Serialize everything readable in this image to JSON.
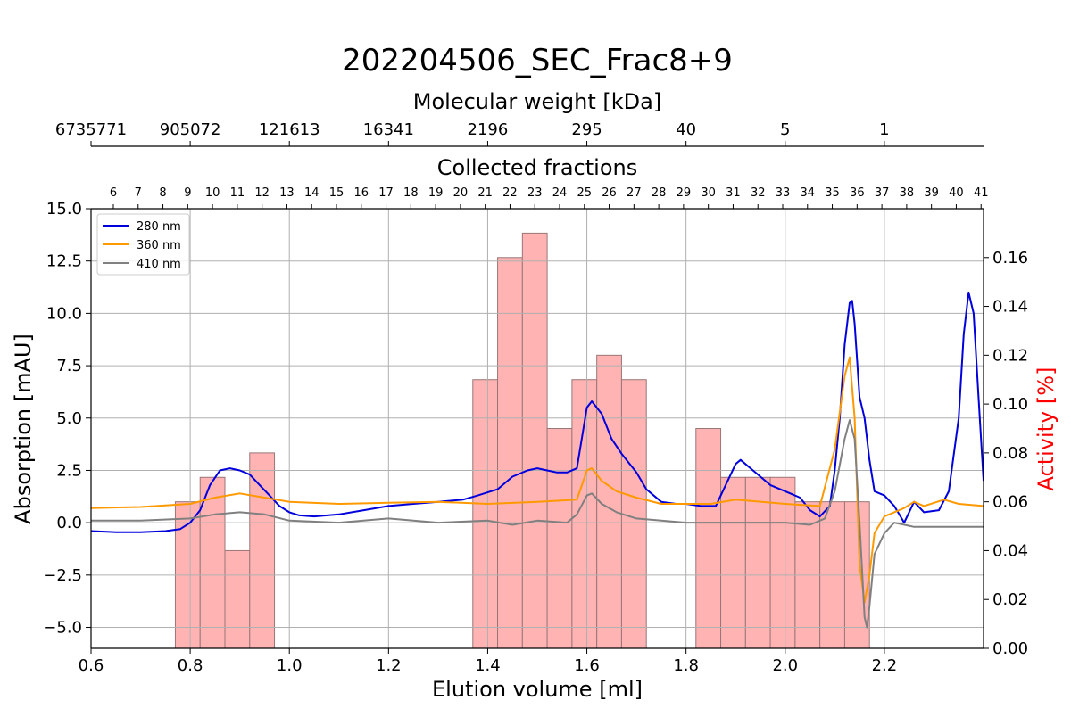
{
  "chart_data": {
    "type": "line",
    "title": "202204506_SEC_Frac8+9",
    "xlabel": "Elution volume [ml]",
    "ylabel": "Absorption [mAU]",
    "y2label": "Activity [%]",
    "top_axis_mw_label": "Molecular weight [kDa]",
    "top_axis_fraction_label": "Collected fractions",
    "xlim": [
      0.6,
      2.4
    ],
    "ylim": [
      -6.0,
      15.0
    ],
    "y2lim": [
      0.0,
      0.18
    ],
    "grid": true,
    "legend_position": "top-left",
    "x_ticks": [
      0.6,
      0.8,
      1.0,
      1.2,
      1.4,
      1.6,
      1.8,
      2.0,
      2.2
    ],
    "x_tick_labels": [
      "0.6",
      "0.8",
      "1.0",
      "1.2",
      "1.4",
      "1.6",
      "1.8",
      "2.0",
      "2.2"
    ],
    "y_ticks": [
      -5.0,
      -2.5,
      0.0,
      2.5,
      5.0,
      7.5,
      10.0,
      12.5,
      15.0
    ],
    "y_tick_labels": [
      "−5.0",
      "−2.5",
      "0.0",
      "2.5",
      "5.0",
      "7.5",
      "10.0",
      "12.5",
      "15.0"
    ],
    "y2_ticks": [
      0.0,
      0.02,
      0.04,
      0.06,
      0.08,
      0.1,
      0.12,
      0.14,
      0.16
    ],
    "y2_tick_labels": [
      "0.00",
      "0.02",
      "0.04",
      "0.06",
      "0.08",
      "0.10",
      "0.12",
      "0.14",
      "0.16"
    ],
    "mw_ticks": [
      {
        "x": 0.6,
        "label": "6735771"
      },
      {
        "x": 0.8,
        "label": "905072"
      },
      {
        "x": 1.0,
        "label": "121613"
      },
      {
        "x": 1.2,
        "label": "16341"
      },
      {
        "x": 1.4,
        "label": "2196"
      },
      {
        "x": 1.6,
        "label": "295"
      },
      {
        "x": 1.8,
        "label": "40"
      },
      {
        "x": 2.0,
        "label": "5"
      },
      {
        "x": 2.2,
        "label": "1"
      }
    ],
    "fraction_start": 0.62,
    "fraction_width": 0.05,
    "fraction_first": 6,
    "fraction_last": 41,
    "bars": [
      {
        "fraction": "9",
        "value": 0.06
      },
      {
        "fraction": "10",
        "value": 0.07
      },
      {
        "fraction": "11",
        "value": 0.04
      },
      {
        "fraction": "12",
        "value": 0.08
      },
      {
        "fraction": "21",
        "value": 0.11
      },
      {
        "fraction": "22",
        "value": 0.16
      },
      {
        "fraction": "23",
        "value": 0.17
      },
      {
        "fraction": "24",
        "value": 0.09
      },
      {
        "fraction": "25",
        "value": 0.11
      },
      {
        "fraction": "26",
        "value": 0.12
      },
      {
        "fraction": "27",
        "value": 0.11
      },
      {
        "fraction": "30",
        "value": 0.09
      },
      {
        "fraction": "31",
        "value": 0.07
      },
      {
        "fraction": "32",
        "value": 0.07
      },
      {
        "fraction": "33",
        "value": 0.07
      },
      {
        "fraction": "34",
        "value": 0.06
      },
      {
        "fraction": "35",
        "value": 0.06
      },
      {
        "fraction": "36",
        "value": 0.06
      }
    ],
    "bar_color": "#ffb3b3",
    "bar_edge_color": "#9a7777",
    "series": [
      {
        "name": "280 nm",
        "color": "#0000dd",
        "points": [
          [
            0.6,
            -0.4
          ],
          [
            0.65,
            -0.45
          ],
          [
            0.7,
            -0.45
          ],
          [
            0.75,
            -0.4
          ],
          [
            0.78,
            -0.3
          ],
          [
            0.8,
            0.0
          ],
          [
            0.82,
            0.6
          ],
          [
            0.84,
            1.8
          ],
          [
            0.86,
            2.5
          ],
          [
            0.88,
            2.6
          ],
          [
            0.9,
            2.5
          ],
          [
            0.92,
            2.3
          ],
          [
            0.94,
            1.8
          ],
          [
            0.96,
            1.3
          ],
          [
            0.98,
            0.8
          ],
          [
            1.0,
            0.5
          ],
          [
            1.02,
            0.35
          ],
          [
            1.05,
            0.3
          ],
          [
            1.1,
            0.4
          ],
          [
            1.15,
            0.6
          ],
          [
            1.2,
            0.8
          ],
          [
            1.25,
            0.9
          ],
          [
            1.3,
            1.0
          ],
          [
            1.35,
            1.1
          ],
          [
            1.38,
            1.3
          ],
          [
            1.42,
            1.6
          ],
          [
            1.45,
            2.2
          ],
          [
            1.48,
            2.5
          ],
          [
            1.5,
            2.6
          ],
          [
            1.52,
            2.5
          ],
          [
            1.54,
            2.4
          ],
          [
            1.56,
            2.4
          ],
          [
            1.58,
            2.6
          ],
          [
            1.6,
            5.5
          ],
          [
            1.61,
            5.8
          ],
          [
            1.63,
            5.2
          ],
          [
            1.65,
            4.0
          ],
          [
            1.67,
            3.3
          ],
          [
            1.7,
            2.4
          ],
          [
            1.72,
            1.6
          ],
          [
            1.75,
            1.0
          ],
          [
            1.78,
            0.9
          ],
          [
            1.8,
            0.9
          ],
          [
            1.83,
            0.8
          ],
          [
            1.86,
            0.8
          ],
          [
            1.88,
            1.8
          ],
          [
            1.9,
            2.8
          ],
          [
            1.91,
            3.0
          ],
          [
            1.93,
            2.6
          ],
          [
            1.95,
            2.2
          ],
          [
            1.97,
            1.8
          ],
          [
            2.0,
            1.5
          ],
          [
            2.03,
            1.2
          ],
          [
            2.05,
            0.6
          ],
          [
            2.07,
            0.3
          ],
          [
            2.09,
            0.8
          ],
          [
            2.1,
            2.5
          ],
          [
            2.11,
            5.0
          ],
          [
            2.12,
            8.5
          ],
          [
            2.13,
            10.5
          ],
          [
            2.135,
            10.6
          ],
          [
            2.14,
            9.5
          ],
          [
            2.15,
            6.0
          ],
          [
            2.16,
            5.0
          ],
          [
            2.17,
            3.0
          ],
          [
            2.18,
            1.5
          ],
          [
            2.2,
            1.3
          ],
          [
            2.22,
            0.8
          ],
          [
            2.24,
            0.0
          ],
          [
            2.26,
            1.0
          ],
          [
            2.28,
            0.5
          ],
          [
            2.31,
            0.6
          ],
          [
            2.33,
            1.5
          ],
          [
            2.35,
            5.0
          ],
          [
            2.36,
            9.0
          ],
          [
            2.37,
            11.0
          ],
          [
            2.38,
            10.0
          ],
          [
            2.39,
            6.0
          ],
          [
            2.4,
            2.0
          ]
        ]
      },
      {
        "name": "360 nm",
        "color": "#ff9900",
        "points": [
          [
            0.6,
            0.7
          ],
          [
            0.7,
            0.75
          ],
          [
            0.8,
            0.9
          ],
          [
            0.85,
            1.2
          ],
          [
            0.9,
            1.4
          ],
          [
            0.95,
            1.2
          ],
          [
            1.0,
            1.0
          ],
          [
            1.1,
            0.9
          ],
          [
            1.2,
            0.95
          ],
          [
            1.3,
            1.0
          ],
          [
            1.4,
            0.9
          ],
          [
            1.5,
            1.0
          ],
          [
            1.58,
            1.1
          ],
          [
            1.6,
            2.5
          ],
          [
            1.61,
            2.6
          ],
          [
            1.63,
            2.0
          ],
          [
            1.66,
            1.5
          ],
          [
            1.7,
            1.2
          ],
          [
            1.75,
            0.9
          ],
          [
            1.8,
            0.9
          ],
          [
            1.85,
            0.9
          ],
          [
            1.9,
            1.1
          ],
          [
            2.0,
            0.9
          ],
          [
            2.07,
            0.8
          ],
          [
            2.1,
            3.5
          ],
          [
            2.12,
            7.0
          ],
          [
            2.13,
            7.9
          ],
          [
            2.14,
            5.0
          ],
          [
            2.15,
            -2.0
          ],
          [
            2.16,
            -3.8
          ],
          [
            2.17,
            -2.5
          ],
          [
            2.18,
            -0.5
          ],
          [
            2.2,
            0.3
          ],
          [
            2.22,
            0.5
          ],
          [
            2.24,
            0.7
          ],
          [
            2.26,
            1.0
          ],
          [
            2.28,
            0.8
          ],
          [
            2.32,
            1.1
          ],
          [
            2.35,
            0.9
          ],
          [
            2.4,
            0.8
          ]
        ]
      },
      {
        "name": "410 nm",
        "color": "#808080",
        "points": [
          [
            0.6,
            0.1
          ],
          [
            0.7,
            0.1
          ],
          [
            0.8,
            0.2
          ],
          [
            0.85,
            0.4
          ],
          [
            0.9,
            0.5
          ],
          [
            0.95,
            0.4
          ],
          [
            1.0,
            0.1
          ],
          [
            1.1,
            0.0
          ],
          [
            1.2,
            0.2
          ],
          [
            1.3,
            0.0
          ],
          [
            1.4,
            0.1
          ],
          [
            1.45,
            -0.1
          ],
          [
            1.5,
            0.1
          ],
          [
            1.56,
            0.0
          ],
          [
            1.58,
            0.4
          ],
          [
            1.6,
            1.3
          ],
          [
            1.61,
            1.4
          ],
          [
            1.63,
            0.9
          ],
          [
            1.66,
            0.5
          ],
          [
            1.7,
            0.2
          ],
          [
            1.8,
            0.0
          ],
          [
            1.9,
            0.0
          ],
          [
            2.0,
            0.0
          ],
          [
            2.05,
            -0.1
          ],
          [
            2.08,
            0.2
          ],
          [
            2.1,
            1.5
          ],
          [
            2.12,
            4.0
          ],
          [
            2.13,
            4.9
          ],
          [
            2.14,
            4.0
          ],
          [
            2.15,
            0.0
          ],
          [
            2.16,
            -4.5
          ],
          [
            2.165,
            -5.0
          ],
          [
            2.17,
            -4.0
          ],
          [
            2.18,
            -1.5
          ],
          [
            2.2,
            -0.5
          ],
          [
            2.22,
            0.0
          ],
          [
            2.26,
            -0.2
          ],
          [
            2.32,
            -0.2
          ],
          [
            2.4,
            -0.2
          ]
        ]
      }
    ]
  }
}
